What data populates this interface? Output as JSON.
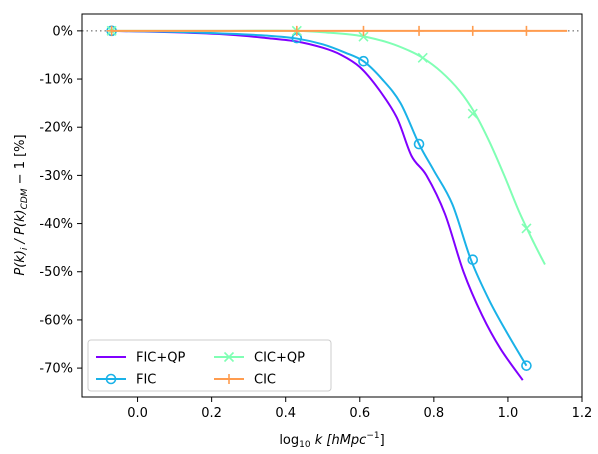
{
  "chart_data": {
    "type": "line",
    "xlabel_parts": {
      "pre": "log",
      "sub": "10",
      "mid": " k [",
      "unit": "hMpc",
      "sup": "−1",
      "post": "]"
    },
    "ylabel_parts": {
      "a": "P(k)",
      "a_sub": "i",
      "b": " / P(k)",
      "b_sub": "CDM",
      "c": "  −  1 [%]"
    },
    "xlim": [
      -0.15,
      1.2
    ],
    "ylim": [
      -76,
      3.5
    ],
    "x_ticks": [
      0.0,
      0.2,
      0.4,
      0.6,
      0.8,
      1.0,
      1.2
    ],
    "x_tick_labels": [
      "0.0",
      "0.2",
      "0.4",
      "0.6",
      "0.8",
      "1.0",
      "1.2"
    ],
    "y_ticks": [
      0,
      -10,
      -20,
      -30,
      -40,
      -50,
      -60,
      -70
    ],
    "y_tick_labels": [
      "0%",
      "-10%",
      "-20%",
      "-30%",
      "-40%",
      "-50%",
      "-60%",
      "-70%"
    ],
    "reference_line": 0,
    "legend_placement": "lower-left",
    "series": [
      {
        "name": "FIC+QP",
        "color": "#8000ff",
        "marker": "none",
        "x": [
          -0.07,
          0.1,
          0.25,
          0.35,
          0.43,
          0.5,
          0.55,
          0.6,
          0.65,
          0.7,
          0.74,
          0.78,
          0.83,
          0.88,
          0.93,
          0.98,
          1.04
        ],
        "y": [
          0,
          -0.3,
          -0.8,
          -1.5,
          -2.2,
          -3.5,
          -5,
          -7.5,
          -12,
          -18,
          -26,
          -30,
          -38,
          -50,
          -59,
          -66,
          -72.5
        ]
      },
      {
        "name": "FIC",
        "color": "#1ab2e8",
        "marker": "circle",
        "x": [
          -0.07,
          0.1,
          0.25,
          0.35,
          0.43,
          0.5,
          0.56,
          0.61,
          0.66,
          0.71,
          0.76,
          0.8,
          0.85,
          0.9,
          0.95,
          1.0,
          1.05
        ],
        "y": [
          0,
          -0.2,
          -0.6,
          -1,
          -1.6,
          -2.8,
          -4.5,
          -6.3,
          -10,
          -15,
          -23.5,
          -29,
          -36,
          -47.5,
          -56,
          -63,
          -69.5
        ],
        "marker_x": [
          -0.07,
          0.43,
          0.61,
          0.76,
          0.905,
          1.05
        ],
        "marker_y": [
          0,
          -1.5,
          -6.3,
          -23.5,
          -47.5,
          -69.5
        ]
      },
      {
        "name": "CIC+QP",
        "color": "#80ffb4",
        "marker": "x",
        "x": [
          -0.07,
          0.25,
          0.43,
          0.52,
          0.58,
          0.62,
          0.68,
          0.73,
          0.77,
          0.82,
          0.87,
          0.91,
          0.95,
          0.99,
          1.03,
          1.07,
          1.1
        ],
        "y": [
          0,
          0,
          0,
          -0.4,
          -0.8,
          -1.3,
          -2.5,
          -4,
          -5.6,
          -8.5,
          -12.5,
          -17,
          -23,
          -30,
          -37.5,
          -44,
          -48.5
        ],
        "marker_x": [
          -0.07,
          0.43,
          0.61,
          0.77,
          0.905,
          1.05
        ],
        "marker_y": [
          0,
          0,
          -1.2,
          -5.6,
          -17.2,
          -41
        ]
      },
      {
        "name": "CIC",
        "color": "#ff9c4f",
        "marker": "plus",
        "x": [
          -0.07,
          1.16
        ],
        "y": [
          0,
          0
        ],
        "marker_x": [
          -0.07,
          0.43,
          0.61,
          0.76,
          0.905,
          1.05
        ],
        "marker_y": [
          0,
          0,
          0,
          0,
          0,
          0
        ]
      }
    ]
  }
}
